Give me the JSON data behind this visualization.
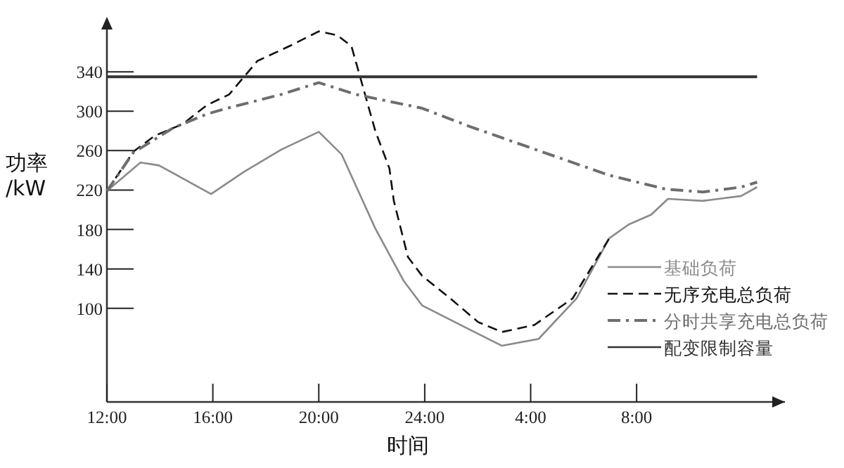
{
  "chart_data": {
    "type": "line",
    "xlabel": "时间",
    "ylabel": "功率\n/kW",
    "xlim": [
      "2000-01-01T12:00",
      "2000-01-02T13:36"
    ],
    "ylim": [
      5,
      390
    ],
    "xticks": [
      {
        "value": "2000-01-01T12:00",
        "label": "12:00"
      },
      {
        "value": "2000-01-01T16:00",
        "label": "16:00"
      },
      {
        "value": "2000-01-01T20:00",
        "label": "20:00"
      },
      {
        "value": "2000-01-02T00:00",
        "label": "24:00"
      },
      {
        "value": "2000-01-02T04:00",
        "label": "4:00"
      },
      {
        "value": "2000-01-02T08:00",
        "label": "8:00"
      }
    ],
    "yticks": [
      100,
      140,
      180,
      220,
      260,
      300,
      340
    ],
    "grid": false,
    "legend": "bottom right",
    "marker": "none",
    "series": [
      {
        "name": "基础负荷",
        "color": "#8a8a8a",
        "line_style": "solid",
        "x": [
          "2000-01-01T12:00",
          "2000-01-01T13:16",
          "2000-01-01T13:58",
          "2000-01-01T15:56",
          "2000-01-01T17:09",
          "2000-01-01T18:35",
          "2000-01-01T20:00",
          "2000-01-01T20:52",
          "2000-01-01T22:08",
          "2000-01-01T23:12",
          "2000-01-01T23:54",
          "2000-01-02T01:39",
          "2000-01-02T02:55",
          "2000-01-02T04:18",
          "2000-01-02T05:44",
          "2000-01-02T06:58",
          "2000-01-02T07:42",
          "2000-01-02T08:33",
          "2000-01-02T09:11",
          "2000-01-02T10:30",
          "2000-01-02T11:57",
          "2000-01-02T12:33"
        ],
        "values": [
          219,
          248,
          245,
          216,
          238,
          261,
          279,
          256,
          181,
          128,
          103,
          79,
          62,
          69,
          110,
          171,
          185,
          195,
          211,
          209,
          214,
          223
        ]
      },
      {
        "name": "无序充电总负荷",
        "color": "#111111",
        "line_style": "dashed",
        "x": [
          "2000-01-01T12:00",
          "2000-01-01T13:00",
          "2000-01-01T13:48",
          "2000-01-01T14:52",
          "2000-01-01T15:46",
          "2000-01-01T16:37",
          "2000-01-01T17:41",
          "2000-01-01T18:58",
          "2000-01-01T20:00",
          "2000-01-01T20:42",
          "2000-01-01T21:14",
          "2000-01-01T21:36",
          "2000-01-01T22:08",
          "2000-01-01T22:40",
          "2000-01-01T22:50",
          "2000-01-01T23:22",
          "2000-01-01T23:54",
          "2000-01-02T00:58",
          "2000-01-02T02:01",
          "2000-01-02T02:55",
          "2000-01-02T04:08",
          "2000-01-02T05:35",
          "2000-01-02T06:58"
        ],
        "values": [
          219,
          259,
          275,
          287,
          306,
          317,
          351,
          367,
          381,
          377,
          366,
          331,
          280,
          242,
          209,
          152,
          133,
          110,
          86,
          76,
          83,
          110,
          171
        ]
      },
      {
        "name": "分时共享充电总负荷",
        "color": "#6e6e6e",
        "line_style": "dashdot",
        "x": [
          "2000-01-01T12:00",
          "2000-01-01T13:00",
          "2000-01-01T14:30",
          "2000-01-01T15:46",
          "2000-01-01T16:24",
          "2000-01-01T18:35",
          "2000-01-01T20:00",
          "2000-01-01T21:24",
          "2000-01-01T23:54",
          "2000-01-02T01:39",
          "2000-01-02T04:18",
          "2000-01-02T06:58",
          "2000-01-02T09:05",
          "2000-01-02T10:30",
          "2000-01-02T11:57",
          "2000-01-02T12:33"
        ],
        "values": [
          219,
          258,
          283,
          297,
          302,
          317,
          329,
          317,
          303,
          285,
          260,
          235,
          221,
          218,
          223,
          228
        ]
      },
      {
        "name": "配变限制容量",
        "color": "#333333",
        "line_style": "solid",
        "x": [
          "2000-01-01T12:00",
          "2000-01-02T12:33"
        ],
        "values": [
          335,
          335
        ]
      }
    ]
  }
}
